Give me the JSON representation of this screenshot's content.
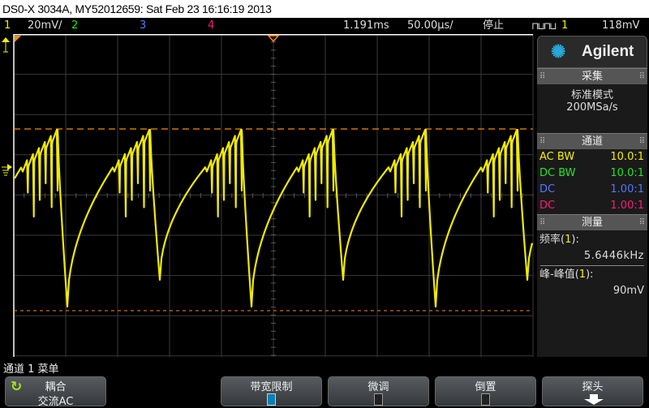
{
  "title": "DS0-X 3034A, MY52012659: Sat Feb 23 16:16:19 2013",
  "status": {
    "ch1": "1",
    "ch1_scale": "20mV/",
    "ch2": "2",
    "ch3": "3",
    "ch4": "4",
    "time_delay": "1.191ms",
    "time_scale": "50.00µs/",
    "run_state": "停止",
    "trigger_icon": "edge-trigger-icon",
    "trigger_source": "1",
    "trigger_level": "118mV"
  },
  "colors": {
    "ch1": "#f5f000",
    "ch2": "#22e522",
    "ch3": "#5577ff",
    "ch4": "#ff1a77",
    "cursor": "#ff8a00",
    "accent": "#0a7fb5"
  },
  "panel": {
    "brand": "Agilent",
    "acquisition": {
      "header": "采集",
      "mode": "标准模式",
      "rate": "200MSa/s"
    },
    "channels": {
      "header": "通道",
      "rows": [
        {
          "coupling": "AC BW",
          "probe": "10.0:1"
        },
        {
          "coupling": "DC BW",
          "probe": "10.0:1"
        },
        {
          "coupling": "DC",
          "probe": "1.00:1"
        },
        {
          "coupling": "DC",
          "probe": "1.00:1"
        }
      ]
    },
    "measurements": {
      "header": "测量",
      "items": [
        {
          "label": "频率",
          "source": "1",
          "value": "5.6446kHz"
        },
        {
          "label": "峰-峰值",
          "source": "1",
          "value": "90mV"
        }
      ]
    }
  },
  "menu": {
    "title": "通道 1 菜单",
    "buttons": [
      {
        "label": "耦合",
        "value": "交流AC"
      },
      {
        "label": "带宽限制",
        "checked": true
      },
      {
        "label": "微调",
        "checked": false
      },
      {
        "label": "倒置",
        "checked": false
      },
      {
        "label": "探头"
      }
    ]
  }
}
